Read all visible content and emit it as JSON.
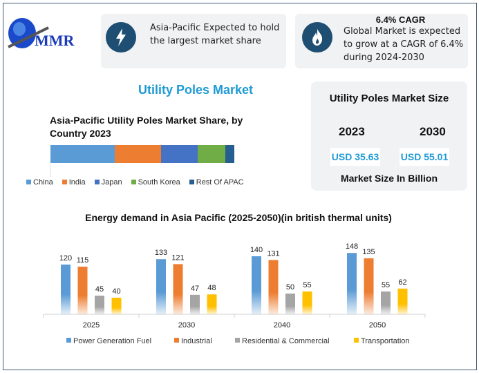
{
  "logo": {
    "text": "MMR"
  },
  "card1": {
    "icon": "lightning-icon",
    "text": "Asia-Pacific Expected to hold the largest market share"
  },
  "card2": {
    "icon": "flame-icon",
    "heading": "6.4% CAGR",
    "text": "Global Market is expected to grow at a CAGR of 6.4% during 2024-2030"
  },
  "main_title": "Utility Poles Market",
  "market_size": {
    "title": "Utility Poles Market Size",
    "year1": "2023",
    "year2": "2030",
    "value1": "USD 35.63",
    "value2": "USD 55.01",
    "footer": "Market Size In Billion"
  },
  "chart_data": [
    {
      "type": "bar",
      "stacked": true,
      "orientation": "horizontal",
      "title": "Asia-Pacific Utility Poles Market Share, by Country 2023",
      "series": [
        {
          "name": "China",
          "values": [
            35
          ],
          "color": "#5b9bd5"
        },
        {
          "name": "India",
          "values": [
            25
          ],
          "color": "#ed7d31"
        },
        {
          "name": "Japan",
          "values": [
            20
          ],
          "color": "#4472c4"
        },
        {
          "name": "South Korea",
          "values": [
            15
          ],
          "color": "#70ad47"
        },
        {
          "name": "Rest Of APAC",
          "values": [
            5
          ],
          "color": "#255e91"
        }
      ],
      "legend": "bottom"
    },
    {
      "type": "bar",
      "title": "Energy demand in Asia Pacific (2025-2050)(in british thermal units)",
      "categories": [
        "2025",
        "2030",
        "2040",
        "2050"
      ],
      "series": [
        {
          "name": "Power Generation Fuel",
          "values": [
            120,
            133,
            140,
            148
          ],
          "color": "#5b9bd5"
        },
        {
          "name": "Industrial",
          "values": [
            115,
            121,
            131,
            135
          ],
          "color": "#ed7d31"
        },
        {
          "name": "Residential & Commercial",
          "values": [
            45,
            47,
            50,
            55
          ],
          "color": "#a5a5a5"
        },
        {
          "name": "Transportation",
          "values": [
            40,
            48,
            55,
            62
          ],
          "color": "#ffc000"
        }
      ],
      "legend": "bottom",
      "grid": false,
      "data_labels": true
    }
  ]
}
